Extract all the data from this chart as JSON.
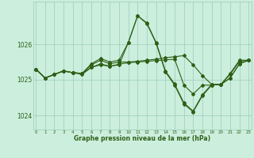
{
  "hours": [
    0,
    1,
    2,
    3,
    4,
    5,
    6,
    7,
    8,
    9,
    10,
    11,
    12,
    13,
    14,
    15,
    16,
    17,
    18,
    19,
    20,
    21,
    22,
    23
  ],
  "series1": [
    1025.3,
    1025.05,
    1025.15,
    1025.25,
    1025.2,
    1025.18,
    1025.45,
    1025.6,
    1025.5,
    1025.55,
    1026.05,
    1026.8,
    1026.6,
    1026.05,
    1025.25,
    1024.88,
    1024.35,
    1024.12,
    1024.58,
    1024.87,
    1024.87,
    1025.18,
    1025.55,
    1025.55
  ],
  "series2": [
    1025.3,
    1025.05,
    1025.15,
    1025.25,
    1025.2,
    1025.18,
    1025.42,
    1025.55,
    1025.45,
    1025.5,
    1025.5,
    1025.52,
    1025.55,
    1025.58,
    1025.62,
    1025.65,
    1025.68,
    1025.42,
    1025.12,
    1024.87,
    1024.87,
    1025.05,
    1025.45,
    1025.55
  ],
  "series3": [
    1025.3,
    1025.05,
    1025.15,
    1025.25,
    1025.2,
    1025.18,
    1025.35,
    1025.45,
    1025.38,
    1025.44,
    1025.48,
    1025.5,
    1025.52,
    1025.54,
    1025.56,
    1025.58,
    1024.85,
    1024.6,
    1024.85,
    1024.85,
    1024.87,
    1025.05,
    1025.45,
    1025.55
  ],
  "series4": [
    1025.3,
    1025.05,
    1025.15,
    1025.25,
    1025.2,
    1025.15,
    1025.35,
    1025.42,
    1025.38,
    1025.42,
    1026.05,
    1026.8,
    1026.58,
    1026.03,
    1025.22,
    1024.85,
    1024.32,
    1024.1,
    1024.55,
    1024.85,
    1024.87,
    1025.15,
    1025.52,
    1025.55
  ],
  "line_color": "#2d6016",
  "bg_color": "#cceedd",
  "grid_color": "#99ccbb",
  "ylabel_ticks": [
    1024,
    1025,
    1026
  ],
  "xlabel_ticks": [
    0,
    1,
    2,
    3,
    4,
    5,
    6,
    7,
    8,
    9,
    10,
    11,
    12,
    13,
    14,
    15,
    16,
    17,
    18,
    19,
    20,
    21,
    22,
    23
  ],
  "ylim": [
    1023.6,
    1027.2
  ],
  "xlabel": "Graphe pression niveau de la mer (hPa)",
  "markersize": 2.0,
  "linewidth": 0.8
}
